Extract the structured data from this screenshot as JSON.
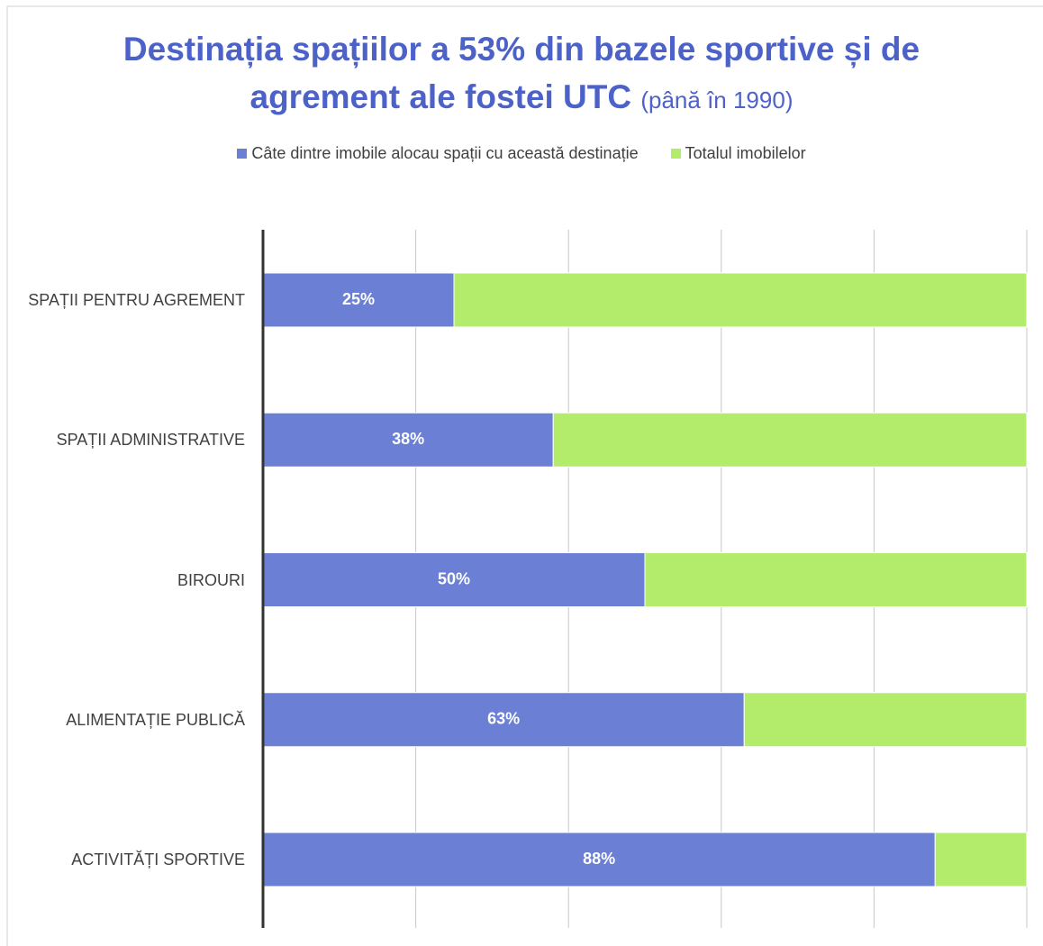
{
  "chart_data": {
    "type": "stacked_barh",
    "title": "Destinația spațiilor a 53% din bazele sportive și de agrement ale fostei UTC",
    "subtitle": "(până în 1990)",
    "categories": [
      "SPAȚII PENTRU AGREMENT",
      "SPAȚII ADMINISTRATIVE",
      "BIROURI",
      "ALIMENTAȚIE PUBLICĂ",
      "ACTIVITĂȚI SPORTIVE"
    ],
    "series": [
      {
        "name": "Câte dintre imobile alocau spații cu această destinație",
        "color": "#6b80d4",
        "values": [
          25,
          38,
          50,
          63,
          88
        ],
        "value_labels": [
          "25%",
          "38%",
          "50%",
          "63%",
          "88%"
        ]
      },
      {
        "name": "Totalul imobilelor",
        "color": "#b3ec6b",
        "values": [
          75,
          62,
          50,
          37,
          12
        ]
      }
    ],
    "xlim": [
      0,
      100
    ],
    "xticks": [
      0,
      20,
      40,
      60,
      80,
      100
    ],
    "grid": true
  }
}
